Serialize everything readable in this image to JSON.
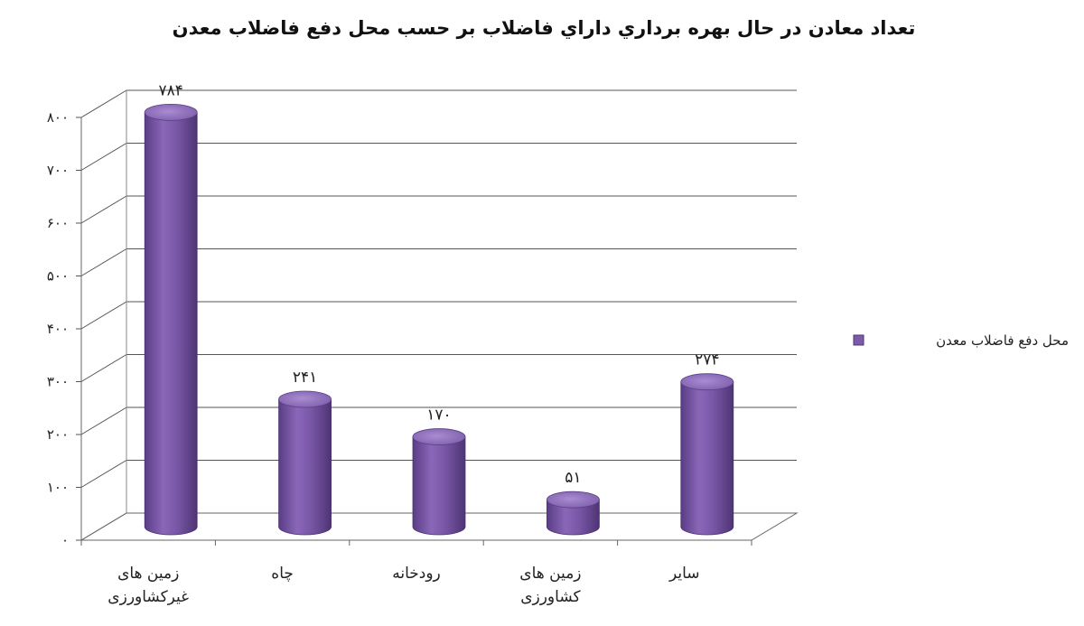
{
  "chart_data": {
    "type": "bar",
    "title": "تعداد معادن در حال بهره برداري داراي فاضلاب بر حسب محل دفع فاضلاب معدن",
    "categories": [
      [
        "زمین های",
        "غیرکشاورزی"
      ],
      [
        "چاه"
      ],
      [
        "رودخانه"
      ],
      [
        "زمین های",
        "کشاورزی"
      ],
      [
        "سایر"
      ]
    ],
    "series": [
      {
        "name": "محل دفع فاضلاب معدن",
        "values": [
          784,
          241,
          170,
          51,
          274
        ]
      }
    ],
    "data_labels": [
      "۷۸۴",
      "۲۴۱",
      "۱۷۰",
      "۵۱",
      "۲۷۴"
    ],
    "y_ticks": [
      {
        "value": 0,
        "label": "۰"
      },
      {
        "value": 100,
        "label": "۱۰۰"
      },
      {
        "value": 200,
        "label": "۲۰۰"
      },
      {
        "value": 300,
        "label": "۳۰۰"
      },
      {
        "value": 400,
        "label": "۴۰۰"
      },
      {
        "value": 500,
        "label": "۵۰۰"
      },
      {
        "value": 600,
        "label": "۶۰۰"
      },
      {
        "value": 700,
        "label": "۷۰۰"
      },
      {
        "value": 800,
        "label": "۸۰۰"
      }
    ],
    "ylim": [
      0,
      800
    ],
    "xlabel": "",
    "ylabel": "",
    "grid": true,
    "legend_position": "right",
    "style": "3d-cylinder",
    "bar_color": "#7E5BA8"
  }
}
